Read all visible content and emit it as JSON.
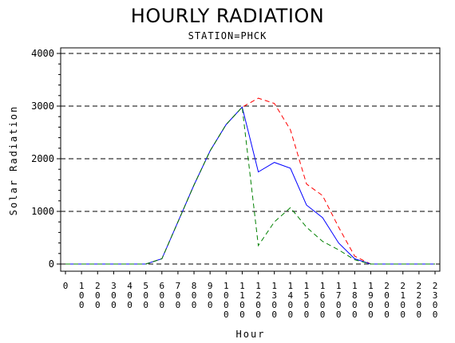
{
  "chart_data": {
    "type": "line",
    "title": "HOURLY RADIATION",
    "subtitle": "STATION=PHCK",
    "xlabel": "Hour",
    "ylabel": "Solar Radiation",
    "ylim": [
      0,
      4000
    ],
    "yticks": [
      0,
      1000,
      2000,
      3000,
      4000
    ],
    "grid": "horizontal dashed",
    "legend": "none",
    "x": [
      "0",
      "100",
      "200",
      "300",
      "400",
      "500",
      "600",
      "700",
      "800",
      "900",
      "1000",
      "1100",
      "1200",
      "1300",
      "1400",
      "1500",
      "1600",
      "1700",
      "1800",
      "1900",
      "2000",
      "2100",
      "2200",
      "2300"
    ],
    "series": [
      {
        "color": "#ff0000",
        "dash": "dashed",
        "values": [
          0,
          0,
          0,
          0,
          0,
          0,
          100,
          800,
          1500,
          2150,
          2650,
          2980,
          3150,
          3050,
          2550,
          1520,
          1300,
          700,
          150,
          0,
          0,
          0,
          0,
          0
        ]
      },
      {
        "color": "#0000ff",
        "dash": "solid",
        "values": [
          0,
          0,
          0,
          0,
          0,
          0,
          100,
          800,
          1500,
          2150,
          2650,
          2980,
          1750,
          1930,
          1820,
          1120,
          880,
          400,
          100,
          0,
          0,
          0,
          0,
          0
        ]
      },
      {
        "color": "#008000",
        "dash": "dashed",
        "values": [
          0,
          0,
          0,
          0,
          0,
          0,
          100,
          800,
          1500,
          2150,
          2650,
          2980,
          350,
          800,
          1070,
          700,
          430,
          270,
          80,
          0,
          0,
          0,
          0,
          0
        ]
      }
    ]
  }
}
